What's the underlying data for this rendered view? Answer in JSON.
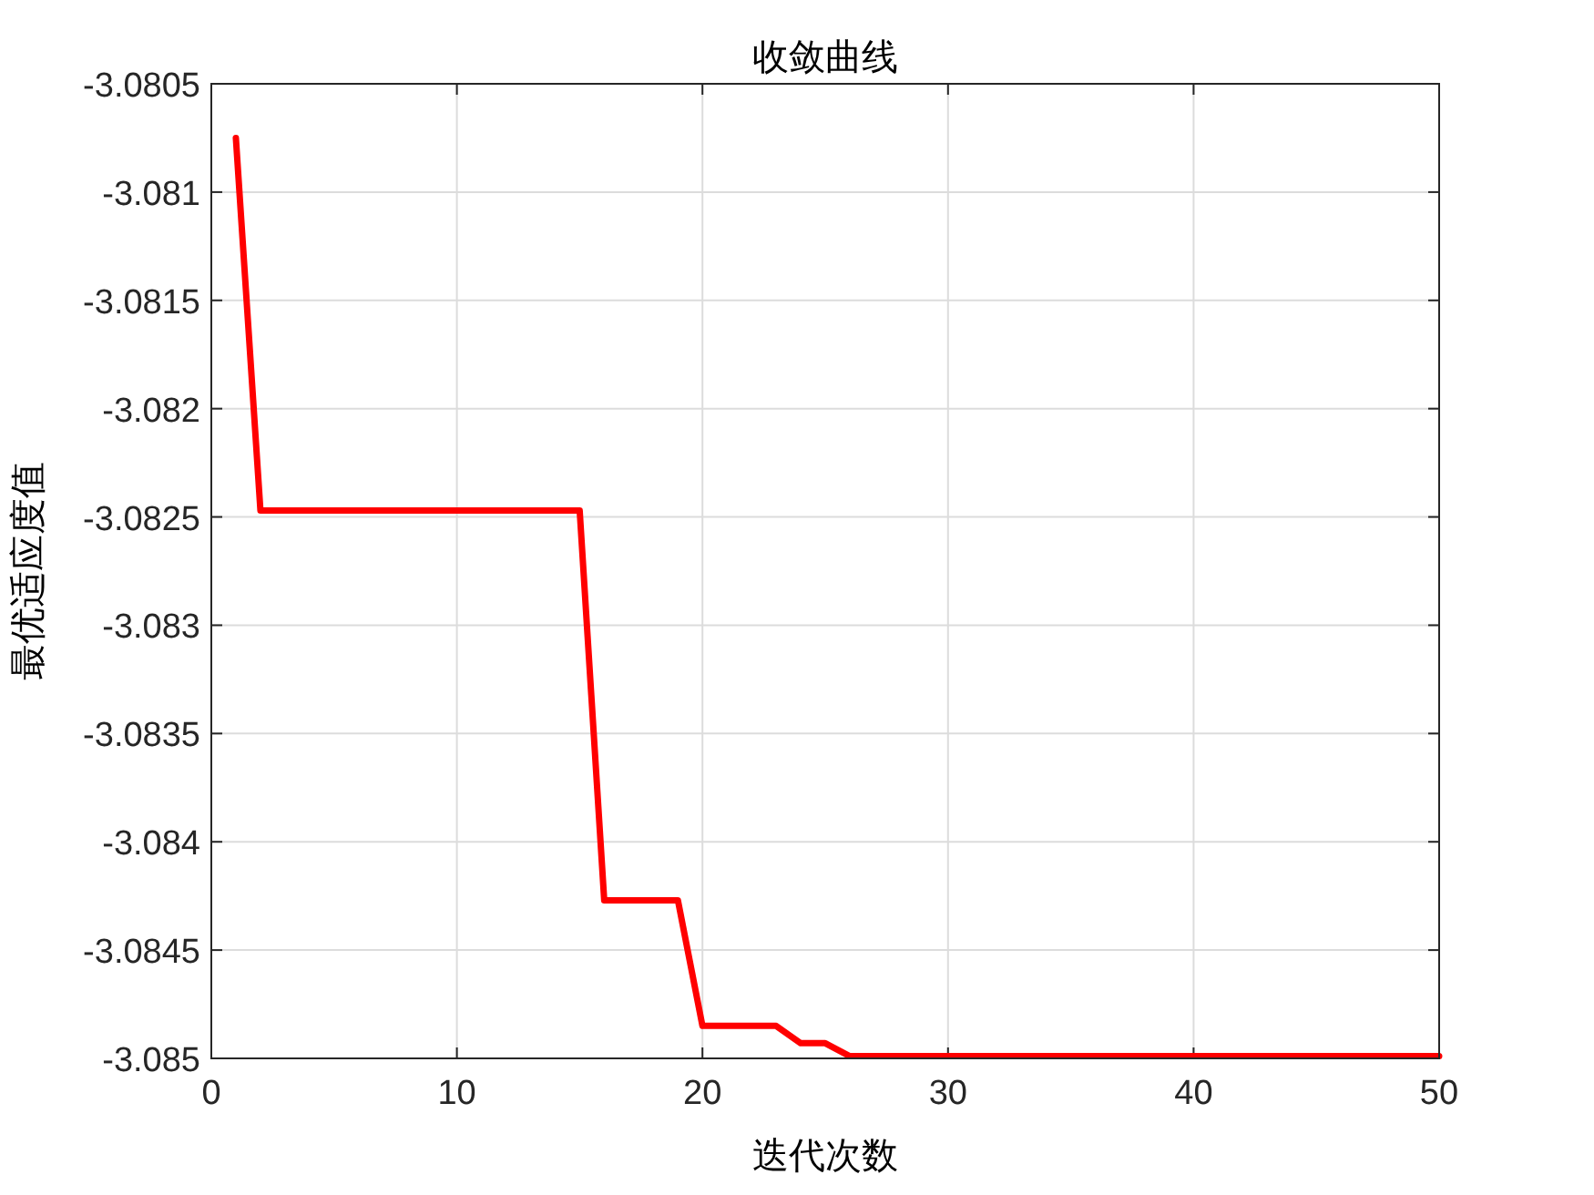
{
  "chart_data": {
    "type": "line",
    "title": "收敛曲线",
    "xlabel": "迭代次数",
    "ylabel": "最优适应度值",
    "x": [
      1,
      2,
      15,
      16,
      19,
      20,
      23,
      24,
      25,
      26,
      50
    ],
    "series": [
      {
        "color": "#ff0000",
        "values": [
          -3.08075,
          -3.08247,
          -3.08247,
          -3.08427,
          -3.08427,
          -3.08485,
          -3.08485,
          -3.08493,
          -3.08493,
          -3.08499,
          -3.08499
        ]
      }
    ],
    "xlim": [
      0,
      50
    ],
    "xticks": [
      0,
      10,
      20,
      30,
      40,
      50
    ],
    "ylim": [
      -3.085,
      -3.0805
    ],
    "yticks": [
      -3.085,
      -3.0845,
      -3.084,
      -3.0835,
      -3.083,
      -3.0825,
      -3.082,
      -3.0815,
      -3.081,
      -3.0805
    ],
    "grid": true,
    "line_style": "solid",
    "marker": "none"
  }
}
